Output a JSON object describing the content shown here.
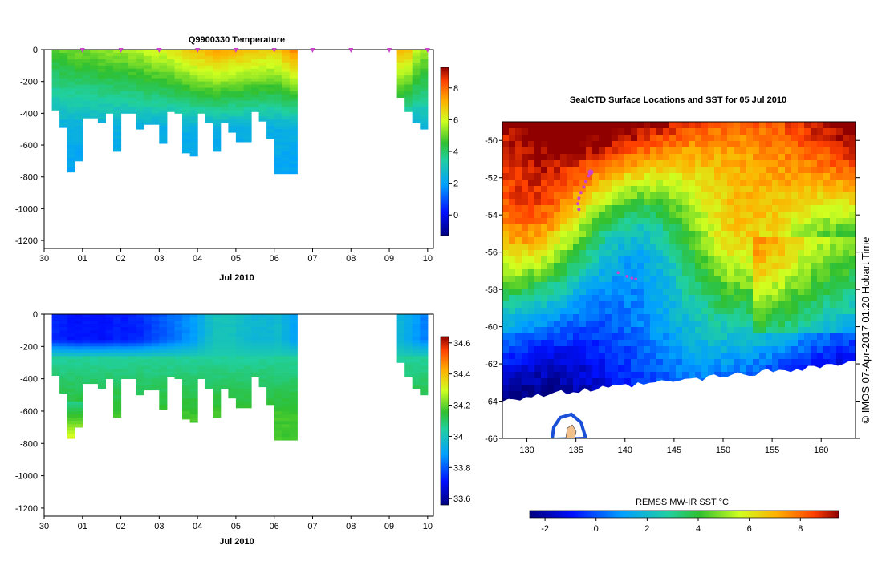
{
  "chart_data": [
    {
      "type": "heatmap",
      "name": "temperature-section",
      "title": "Q9900330  Temperature",
      "xlabel": "Jul 2010",
      "ylabel": "",
      "x_ticks": [
        "30",
        "01",
        "02",
        "03",
        "04",
        "05",
        "06",
        "07",
        "08",
        "09",
        "10"
      ],
      "y_ticks": [
        0,
        -200,
        -400,
        -600,
        -800,
        -1000,
        -1200
      ],
      "ylim": [
        -1250,
        0
      ],
      "profile_days": [
        0.3,
        0.5,
        0.7,
        0.9,
        1.1,
        1.3,
        1.5,
        1.7,
        1.9,
        2.1,
        2.3,
        2.5,
        2.7,
        2.9,
        3.1,
        3.3,
        3.5,
        3.7,
        3.9,
        4.1,
        4.3,
        4.5,
        4.7,
        4.9,
        5.1,
        5.3,
        5.5,
        5.7,
        5.9,
        6.1,
        6.3,
        6.5,
        6.7,
        6.9,
        7.1,
        7.3,
        7.5,
        7.7,
        7.9,
        8.1,
        8.3,
        8.5,
        9.3,
        9.5,
        9.7,
        9.9
      ],
      "max_depth_m": [
        380,
        490,
        770,
        700,
        430,
        430,
        460,
        400,
        640,
        400,
        400,
        500,
        470,
        470,
        590,
        390,
        400,
        650,
        670,
        400,
        460,
        640,
        460,
        520,
        580,
        580,
        390,
        450,
        560,
        780,
        780,
        780,
        0,
        0,
        0,
        0,
        0,
        0,
        0,
        0,
        0,
        0,
        300,
        390,
        460,
        500
      ],
      "surface_values": [
        4.7,
        4.9,
        5.0,
        5.1,
        5.1,
        5.2,
        5.3,
        5.3,
        5.4,
        5.4,
        5.5,
        5.6,
        5.8,
        5.9,
        6.0,
        6.2,
        6.4,
        6.6,
        6.8,
        7.0,
        7.2,
        7.4,
        7.2,
        7.1,
        7.0,
        6.9,
        6.8,
        6.7,
        6.6,
        6.7,
        7.2,
        7.6,
        0,
        0,
        0,
        0,
        0,
        0,
        0,
        0,
        0,
        0,
        7.0,
        6.8,
        5.8,
        5.4
      ],
      "colorbar": {
        "min": -1.3,
        "max": 9.3,
        "ticks": [
          0,
          2,
          4,
          6,
          8
        ]
      },
      "marker_days": [
        1,
        2,
        3,
        4,
        5,
        6,
        7,
        8,
        9,
        10
      ]
    },
    {
      "type": "heatmap",
      "name": "salinity-section",
      "title": "",
      "xlabel": "Jul 2010",
      "x_ticks": [
        "30",
        "01",
        "02",
        "03",
        "04",
        "05",
        "06",
        "07",
        "08",
        "09",
        "10"
      ],
      "y_ticks": [
        0,
        -200,
        -400,
        -600,
        -800,
        -1000,
        -1200
      ],
      "ylim": [
        -1250,
        0
      ],
      "surface_values": [
        33.74,
        33.73,
        33.72,
        33.71,
        33.72,
        33.71,
        33.71,
        33.72,
        33.73,
        33.72,
        33.73,
        33.74,
        33.76,
        33.78,
        33.8,
        33.82,
        33.84,
        33.86,
        33.88,
        33.93,
        33.97,
        34.0,
        34.0,
        34.0,
        33.98,
        33.97,
        33.96,
        33.96,
        33.96,
        33.97,
        33.94,
        33.9,
        0,
        0,
        0,
        0,
        0,
        0,
        0,
        0,
        0,
        0,
        33.95,
        33.92,
        33.88,
        33.85
      ],
      "colorbar": {
        "min": 33.56,
        "max": 34.64,
        "ticks": [
          "33.6",
          "33.8",
          "34",
          "34.2",
          "34.4",
          "34.6"
        ]
      }
    },
    {
      "type": "heatmap",
      "name": "sst-map",
      "title": "SealCTD Surface Locations and SST for 05 Jul 2010",
      "lon_ticks": [
        130,
        135,
        140,
        145,
        150,
        155,
        160
      ],
      "lat_ticks": [
        -50,
        -52,
        -54,
        -56,
        -58,
        -60,
        -62,
        -64,
        -66
      ],
      "lon_range": [
        127.5,
        163.5
      ],
      "lat_range": [
        -66,
        -49
      ],
      "track_points": [
        {
          "lon": 136.5,
          "lat": -51.7
        },
        {
          "lon": 136.3,
          "lat": -51.9
        },
        {
          "lon": 136.0,
          "lat": -52.2
        },
        {
          "lon": 135.8,
          "lat": -52.5
        },
        {
          "lon": 135.5,
          "lat": -52.8
        },
        {
          "lon": 135.3,
          "lat": -53.1
        },
        {
          "lon": 135.2,
          "lat": -53.4
        },
        {
          "lon": 135.3,
          "lat": -53.7
        }
      ],
      "track_points_2": [
        {
          "lon": 139.3,
          "lat": -57.1
        },
        {
          "lon": 140.2,
          "lat": -57.3
        },
        {
          "lon": 140.7,
          "lat": -57.4
        },
        {
          "lon": 141.1,
          "lat": -57.45
        }
      ],
      "colorbar": {
        "label": "REMSS MW-IR SST °C",
        "min": -2.6,
        "max": 9.5,
        "ticks": [
          -2,
          0,
          2,
          4,
          6,
          8
        ]
      },
      "credit": "© IMOS 07-Apr-2017 01:20 Hobart Time"
    }
  ],
  "colors": {
    "jet_stops": [
      "#000080",
      "#0000ff",
      "#00b0ff",
      "#20d060",
      "#ffff00",
      "#ff8000",
      "#a00000"
    ],
    "marker": "#cc44cc",
    "ice": "#ffffff",
    "land": "#f0c090"
  }
}
